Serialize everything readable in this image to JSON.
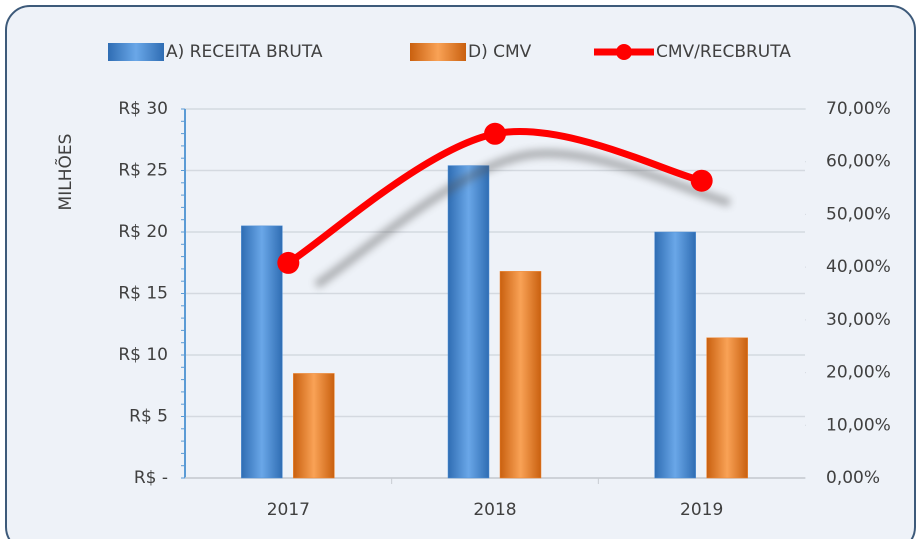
{
  "chart_data": {
    "type": "bar_line",
    "y_axis_label": "MILHÕES",
    "categories": [
      "2017",
      "2018",
      "2019"
    ],
    "series": [
      {
        "name": "A) RECEITA BRUTA",
        "color": "#4f8fd6",
        "type": "bar",
        "values": [
          20.5,
          25.4,
          20.0
        ]
      },
      {
        "name": "D) CMV",
        "color": "#f0842c",
        "type": "bar",
        "values": [
          8.5,
          16.8,
          11.4
        ]
      },
      {
        "name": "CMV/RECBRUTA",
        "color": "#ff0000",
        "type": "line",
        "axis": "y2",
        "values": [
          40.8,
          65.3,
          56.4
        ]
      }
    ],
    "ylim": [
      0,
      30
    ],
    "yticks": [
      {
        "value": 0,
        "label": "R$ -"
      },
      {
        "value": 5,
        "label": "R$ 5"
      },
      {
        "value": 10,
        "label": "R$ 10"
      },
      {
        "value": 15,
        "label": "R$ 15"
      },
      {
        "value": 20,
        "label": "R$ 20"
      },
      {
        "value": 25,
        "label": "R$ 25"
      },
      {
        "value": 30,
        "label": "R$ 30"
      }
    ],
    "y2lim": [
      0,
      70
    ],
    "y2ticks": [
      {
        "value": 0,
        "label": "0,00%"
      },
      {
        "value": 10,
        "label": "10,00%"
      },
      {
        "value": 20,
        "label": "20,00%"
      },
      {
        "value": 30,
        "label": "30,00%"
      },
      {
        "value": 40,
        "label": "40,00%"
      },
      {
        "value": 50,
        "label": "50,00%"
      },
      {
        "value": 60,
        "label": "60,00%"
      },
      {
        "value": 70,
        "label": "70,00%"
      }
    ],
    "grid": true,
    "legend": "top"
  }
}
